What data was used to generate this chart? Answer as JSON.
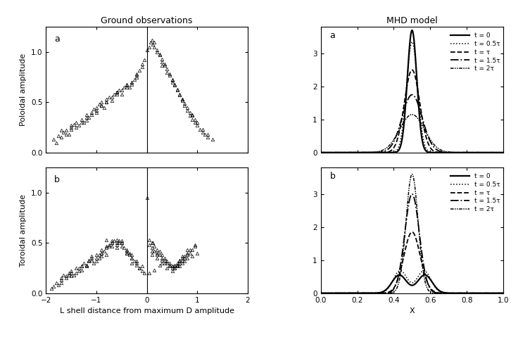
{
  "title_left": "Ground observations",
  "title_right": "MHD model",
  "xlabel_left": "L shell distance from maximum D amplitude",
  "xlabel_right": "X",
  "ylabel_top_left": "Poloidal amplitude",
  "ylabel_bot_left": "Toroidal amplitude",
  "xlim_left": [
    -2,
    2
  ],
  "ylim_scatter": [
    0,
    1.25
  ],
  "xlim_right": [
    0,
    1.0
  ],
  "ylim_right": [
    0,
    3.8
  ],
  "legend_labels": [
    "t = 0",
    "t = 0.5τ",
    "t = τ",
    "t = 1.5τ",
    "t = 2τ"
  ],
  "background_color": "#ffffff",
  "label_a": "a",
  "label_b": "b",
  "poloidal_scatter": [
    [
      -1.85,
      0.13
    ],
    [
      -1.75,
      0.17
    ],
    [
      -1.7,
      0.15
    ],
    [
      -1.65,
      0.2
    ],
    [
      -1.6,
      0.22
    ],
    [
      -1.55,
      0.18
    ],
    [
      -1.5,
      0.25
    ],
    [
      -1.45,
      0.28
    ],
    [
      -1.4,
      0.3
    ],
    [
      -1.35,
      0.27
    ],
    [
      -1.3,
      0.33
    ],
    [
      -1.25,
      0.3
    ],
    [
      -1.2,
      0.38
    ],
    [
      -1.15,
      0.35
    ],
    [
      -1.1,
      0.4
    ],
    [
      -1.05,
      0.43
    ],
    [
      -1.0,
      0.42
    ],
    [
      -0.95,
      0.48
    ],
    [
      -0.9,
      0.5
    ],
    [
      -0.85,
      0.45
    ],
    [
      -0.8,
      0.53
    ],
    [
      -0.75,
      0.55
    ],
    [
      -0.7,
      0.52
    ],
    [
      -0.65,
      0.58
    ],
    [
      -0.6,
      0.6
    ],
    [
      -0.55,
      0.62
    ],
    [
      -0.5,
      0.58
    ],
    [
      -0.45,
      0.65
    ],
    [
      -0.4,
      0.68
    ],
    [
      -0.35,
      0.65
    ],
    [
      -0.3,
      0.7
    ],
    [
      -0.25,
      0.73
    ],
    [
      -0.2,
      0.78
    ],
    [
      -0.15,
      0.82
    ],
    [
      -0.1,
      0.88
    ],
    [
      -0.05,
      0.92
    ],
    [
      -1.8,
      0.1
    ],
    [
      -1.6,
      0.18
    ],
    [
      -1.4,
      0.25
    ],
    [
      -1.2,
      0.32
    ],
    [
      -1.0,
      0.45
    ],
    [
      -0.8,
      0.5
    ],
    [
      -0.6,
      0.58
    ],
    [
      -0.4,
      0.65
    ],
    [
      -0.2,
      0.75
    ],
    [
      -1.7,
      0.22
    ],
    [
      -1.5,
      0.27
    ],
    [
      -1.3,
      0.3
    ],
    [
      -1.1,
      0.38
    ],
    [
      -0.9,
      0.47
    ],
    [
      -0.7,
      0.55
    ],
    [
      -0.5,
      0.62
    ],
    [
      -0.3,
      0.68
    ],
    [
      -0.1,
      0.85
    ],
    [
      -1.0,
      0.4
    ],
    [
      -0.8,
      0.5
    ],
    [
      -0.6,
      0.6
    ],
    [
      -0.4,
      0.67
    ],
    [
      -0.2,
      0.77
    ],
    [
      -1.5,
      0.23
    ],
    [
      -1.2,
      0.35
    ],
    [
      -0.9,
      0.47
    ],
    [
      -0.6,
      0.6
    ],
    [
      -0.3,
      0.7
    ],
    [
      0.0,
      1.02
    ],
    [
      0.05,
      1.05
    ],
    [
      0.08,
      1.1
    ],
    [
      0.12,
      1.08
    ],
    [
      0.15,
      1.05
    ],
    [
      0.2,
      1.02
    ],
    [
      0.25,
      0.98
    ],
    [
      0.3,
      0.93
    ],
    [
      0.35,
      0.88
    ],
    [
      0.4,
      0.83
    ],
    [
      0.45,
      0.77
    ],
    [
      0.5,
      0.72
    ],
    [
      0.55,
      0.67
    ],
    [
      0.6,
      0.62
    ],
    [
      0.65,
      0.57
    ],
    [
      0.7,
      0.52
    ],
    [
      0.75,
      0.47
    ],
    [
      0.8,
      0.42
    ],
    [
      0.85,
      0.37
    ],
    [
      0.9,
      0.33
    ],
    [
      0.95,
      0.3
    ],
    [
      1.0,
      0.27
    ],
    [
      1.05,
      0.23
    ],
    [
      1.1,
      0.2
    ],
    [
      1.15,
      0.18
    ],
    [
      1.2,
      0.15
    ],
    [
      1.3,
      0.13
    ],
    [
      0.1,
      1.12
    ],
    [
      0.2,
      1.0
    ],
    [
      0.3,
      0.9
    ],
    [
      0.4,
      0.8
    ],
    [
      0.5,
      0.73
    ],
    [
      0.6,
      0.63
    ],
    [
      0.7,
      0.53
    ],
    [
      0.8,
      0.45
    ],
    [
      0.9,
      0.38
    ],
    [
      1.0,
      0.3
    ],
    [
      1.1,
      0.23
    ],
    [
      1.2,
      0.18
    ],
    [
      0.15,
      1.1
    ],
    [
      0.25,
      0.97
    ],
    [
      0.35,
      0.87
    ],
    [
      0.45,
      0.78
    ],
    [
      0.55,
      0.68
    ],
    [
      0.65,
      0.58
    ],
    [
      0.75,
      0.49
    ],
    [
      0.85,
      0.4
    ],
    [
      0.95,
      0.33
    ],
    [
      0.3,
      0.87
    ],
    [
      0.5,
      0.7
    ],
    [
      0.7,
      0.53
    ],
    [
      0.9,
      0.37
    ]
  ],
  "toroidal_scatter": [
    [
      -1.85,
      0.07
    ],
    [
      -1.8,
      0.1
    ],
    [
      -1.7,
      0.13
    ],
    [
      -1.65,
      0.18
    ],
    [
      -1.6,
      0.15
    ],
    [
      -1.55,
      0.2
    ],
    [
      -1.5,
      0.22
    ],
    [
      -1.45,
      0.18
    ],
    [
      -1.4,
      0.25
    ],
    [
      -1.35,
      0.22
    ],
    [
      -1.3,
      0.27
    ],
    [
      -1.25,
      0.3
    ],
    [
      -1.2,
      0.28
    ],
    [
      -1.15,
      0.32
    ],
    [
      -1.1,
      0.35
    ],
    [
      -1.05,
      0.3
    ],
    [
      -1.0,
      0.38
    ],
    [
      -0.95,
      0.35
    ],
    [
      -0.9,
      0.4
    ],
    [
      -0.85,
      0.42
    ],
    [
      -0.8,
      0.45
    ],
    [
      -0.75,
      0.48
    ],
    [
      -0.7,
      0.5
    ],
    [
      -0.65,
      0.52
    ],
    [
      -0.6,
      0.48
    ],
    [
      -0.55,
      0.52
    ],
    [
      -0.5,
      0.5
    ],
    [
      -0.45,
      0.45
    ],
    [
      -0.4,
      0.42
    ],
    [
      -0.35,
      0.4
    ],
    [
      -0.3,
      0.35
    ],
    [
      -0.25,
      0.32
    ],
    [
      -0.2,
      0.28
    ],
    [
      -0.15,
      0.25
    ],
    [
      -0.1,
      0.22
    ],
    [
      -0.05,
      0.2
    ],
    [
      -1.75,
      0.08
    ],
    [
      -1.55,
      0.18
    ],
    [
      -1.35,
      0.25
    ],
    [
      -1.15,
      0.33
    ],
    [
      -0.95,
      0.38
    ],
    [
      -0.75,
      0.47
    ],
    [
      -0.55,
      0.5
    ],
    [
      -0.35,
      0.38
    ],
    [
      -0.15,
      0.25
    ],
    [
      -1.7,
      0.15
    ],
    [
      -1.5,
      0.2
    ],
    [
      -1.3,
      0.27
    ],
    [
      -1.1,
      0.33
    ],
    [
      -0.9,
      0.4
    ],
    [
      -0.7,
      0.5
    ],
    [
      -0.5,
      0.52
    ],
    [
      -0.3,
      0.38
    ],
    [
      -0.1,
      0.27
    ],
    [
      -0.8,
      0.53
    ],
    [
      -0.6,
      0.5
    ],
    [
      -0.4,
      0.43
    ],
    [
      -0.2,
      0.32
    ],
    [
      -1.0,
      0.35
    ],
    [
      -0.8,
      0.47
    ],
    [
      -1.5,
      0.17
    ],
    [
      -1.2,
      0.28
    ],
    [
      -0.6,
      0.53
    ],
    [
      -0.7,
      0.47
    ],
    [
      -0.5,
      0.5
    ],
    [
      -0.4,
      0.4
    ],
    [
      -1.9,
      0.05
    ],
    [
      -1.7,
      0.1
    ],
    [
      -1.3,
      0.23
    ],
    [
      -1.1,
      0.37
    ],
    [
      -0.9,
      0.43
    ],
    [
      -0.7,
      0.52
    ],
    [
      -0.5,
      0.47
    ],
    [
      -0.3,
      0.35
    ],
    [
      -0.8,
      0.38
    ],
    [
      -1.0,
      0.32
    ],
    [
      -1.2,
      0.27
    ],
    [
      -0.6,
      0.45
    ],
    [
      -0.4,
      0.4
    ],
    [
      -0.2,
      0.3
    ],
    [
      -1.4,
      0.2
    ],
    [
      -0.9,
      0.37
    ],
    [
      -1.6,
      0.17
    ],
    [
      -0.3,
      0.3
    ],
    [
      0.0,
      0.95
    ],
    [
      0.05,
      0.48
    ],
    [
      0.1,
      0.45
    ],
    [
      0.12,
      0.5
    ],
    [
      0.15,
      0.42
    ],
    [
      0.2,
      0.4
    ],
    [
      0.25,
      0.38
    ],
    [
      0.3,
      0.35
    ],
    [
      0.35,
      0.33
    ],
    [
      0.4,
      0.3
    ],
    [
      0.45,
      0.28
    ],
    [
      0.5,
      0.27
    ],
    [
      0.55,
      0.25
    ],
    [
      0.6,
      0.28
    ],
    [
      0.65,
      0.3
    ],
    [
      0.7,
      0.33
    ],
    [
      0.75,
      0.35
    ],
    [
      0.8,
      0.38
    ],
    [
      0.85,
      0.4
    ],
    [
      0.9,
      0.43
    ],
    [
      0.95,
      0.47
    ],
    [
      0.1,
      0.5
    ],
    [
      0.2,
      0.43
    ],
    [
      0.3,
      0.38
    ],
    [
      0.4,
      0.32
    ],
    [
      0.5,
      0.27
    ],
    [
      0.6,
      0.3
    ],
    [
      0.7,
      0.35
    ],
    [
      0.8,
      0.4
    ],
    [
      0.05,
      0.53
    ],
    [
      0.15,
      0.47
    ],
    [
      0.25,
      0.42
    ],
    [
      0.35,
      0.35
    ],
    [
      0.45,
      0.3
    ],
    [
      0.55,
      0.27
    ],
    [
      0.65,
      0.32
    ],
    [
      0.75,
      0.37
    ],
    [
      0.85,
      0.43
    ],
    [
      0.95,
      0.48
    ],
    [
      0.1,
      0.42
    ],
    [
      0.2,
      0.38
    ],
    [
      0.3,
      0.33
    ],
    [
      0.5,
      0.25
    ],
    [
      0.6,
      0.28
    ],
    [
      0.7,
      0.37
    ],
    [
      0.8,
      0.43
    ],
    [
      0.05,
      0.2
    ],
    [
      0.15,
      0.23
    ],
    [
      0.25,
      0.28
    ],
    [
      0.4,
      0.25
    ],
    [
      0.5,
      0.22
    ],
    [
      0.65,
      0.27
    ],
    [
      0.75,
      0.32
    ],
    [
      0.9,
      0.37
    ],
    [
      1.0,
      0.4
    ],
    [
      0.2,
      0.35
    ],
    [
      0.35,
      0.3
    ],
    [
      0.55,
      0.25
    ],
    [
      0.7,
      0.3
    ],
    [
      0.1,
      0.38
    ],
    [
      0.3,
      0.3
    ],
    [
      0.6,
      0.27
    ],
    [
      0.8,
      0.35
    ],
    [
      0.45,
      0.27
    ],
    [
      0.55,
      0.28
    ],
    [
      0.65,
      0.33
    ]
  ]
}
